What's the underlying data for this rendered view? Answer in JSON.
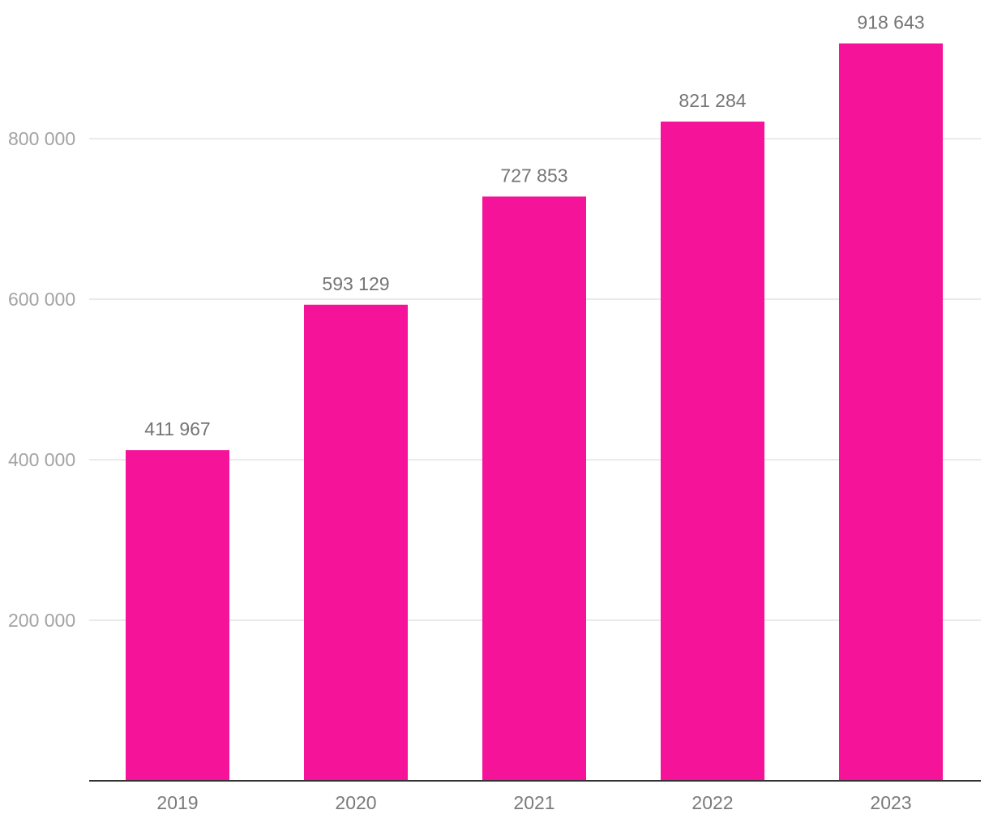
{
  "chart_data": {
    "type": "bar",
    "categories": [
      "2019",
      "2020",
      "2021",
      "2022",
      "2023"
    ],
    "values": [
      411967,
      593129,
      727853,
      821284,
      918643
    ],
    "value_labels": [
      "411 967",
      "593 129",
      "727 853",
      "821 284",
      "918 643"
    ],
    "yticks": [
      200000,
      400000,
      600000,
      800000
    ],
    "ytick_labels": [
      "200 000",
      "400 000",
      "600 000",
      "800 000"
    ],
    "ylim": [
      0,
      920000
    ],
    "grid": true,
    "bar_color": "#f5139a"
  }
}
